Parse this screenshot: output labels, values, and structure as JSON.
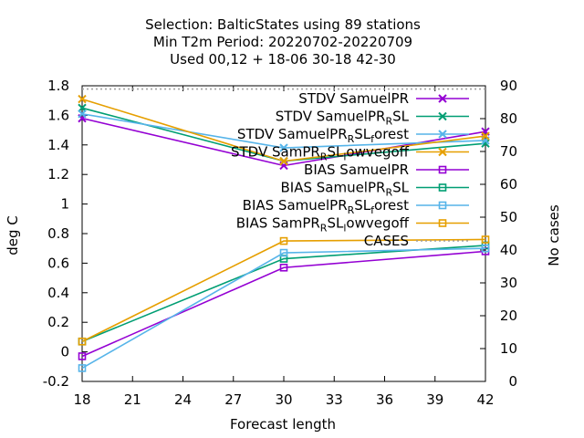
{
  "chart_data": {
    "type": "line",
    "title_lines": [
      "Selection: BalticStates using    89 stations",
      "Min T2m   Period: 20220702-20220709",
      "Used  00,12  + 18-06 30-18 42-30"
    ],
    "xlabel": "Forecast length",
    "ylabel": "deg C",
    "y2label": "No cases",
    "x": [
      18,
      30,
      42
    ],
    "xlim": [
      18,
      42
    ],
    "ylim": [
      -0.2,
      1.8
    ],
    "y2lim": [
      0,
      90
    ],
    "xticks": [
      "18",
      "21",
      "24",
      "27",
      "30",
      "33",
      "36",
      "39",
      "42"
    ],
    "yticks": [
      "-0.2",
      "0",
      "0.2",
      "0.4",
      "0.6",
      "0.8",
      "1",
      "1.2",
      "1.4",
      "1.6",
      "1.8"
    ],
    "y2ticks": [
      "0",
      "10",
      "20",
      "30",
      "40",
      "50",
      "60",
      "70",
      "80",
      "90"
    ],
    "legend_position": "top-right",
    "grid": false,
    "series": [
      {
        "name": "STDV SamuelPR",
        "values": [
          1.58,
          1.26,
          1.49
        ],
        "color": "#9400d3",
        "marker": "x"
      },
      {
        "name": "STDV SamuelPR_RSL",
        "values": [
          1.65,
          1.29,
          1.41
        ],
        "color": "#009e73",
        "marker": "x"
      },
      {
        "name": "STDV SamuelPR_RSL_forest",
        "values": [
          1.61,
          1.38,
          1.43
        ],
        "color": "#56b4e9",
        "marker": "x"
      },
      {
        "name": "STDV SamPR_RSL_lowvegoff",
        "values": [
          1.71,
          1.29,
          1.46
        ],
        "color": "#e69f00",
        "marker": "x"
      },
      {
        "name": "BIAS SamuelPR",
        "values": [
          -0.03,
          0.57,
          0.68
        ],
        "color": "#9400d3",
        "marker": "square"
      },
      {
        "name": "BIAS SamuelPR_RSL",
        "values": [
          0.07,
          0.63,
          0.72
        ],
        "color": "#009e73",
        "marker": "square"
      },
      {
        "name": "BIAS SamuelPR_RSL_forest",
        "values": [
          -0.11,
          0.67,
          0.7
        ],
        "color": "#56b4e9",
        "marker": "square"
      },
      {
        "name": "BIAS SamPR_RSL_lowvegoff",
        "values": [
          0.07,
          0.75,
          0.76
        ],
        "color": "#e69f00",
        "marker": "square"
      }
    ],
    "cases": {
      "name": "CASES",
      "values": [
        89,
        89,
        89
      ],
      "axis": "y2",
      "color": "#a0a0a0",
      "style": "dotted"
    },
    "legend_labels": [
      {
        "base": "STDV SamuelPR",
        "subs": []
      },
      {
        "base": "STDV SamuelPR",
        "subs": [
          "R",
          "SL"
        ]
      },
      {
        "base": "STDV SamuelPR",
        "subs": [
          "R",
          "SL",
          "f",
          "orest"
        ]
      },
      {
        "base": "STDV SamPR",
        "subs": [
          "R",
          "SL",
          "l",
          "owvegoff"
        ]
      },
      {
        "base": "BIAS SamuelPR",
        "subs": []
      },
      {
        "base": "BIAS SamuelPR",
        "subs": [
          "R",
          "SL"
        ]
      },
      {
        "base": "BIAS SamuelPR",
        "subs": [
          "R",
          "SL",
          "f",
          "orest"
        ]
      },
      {
        "base": "BIAS SamPR",
        "subs": [
          "R",
          "SL",
          "l",
          "owvegoff"
        ]
      },
      {
        "base": "CASES",
        "subs": []
      }
    ]
  }
}
